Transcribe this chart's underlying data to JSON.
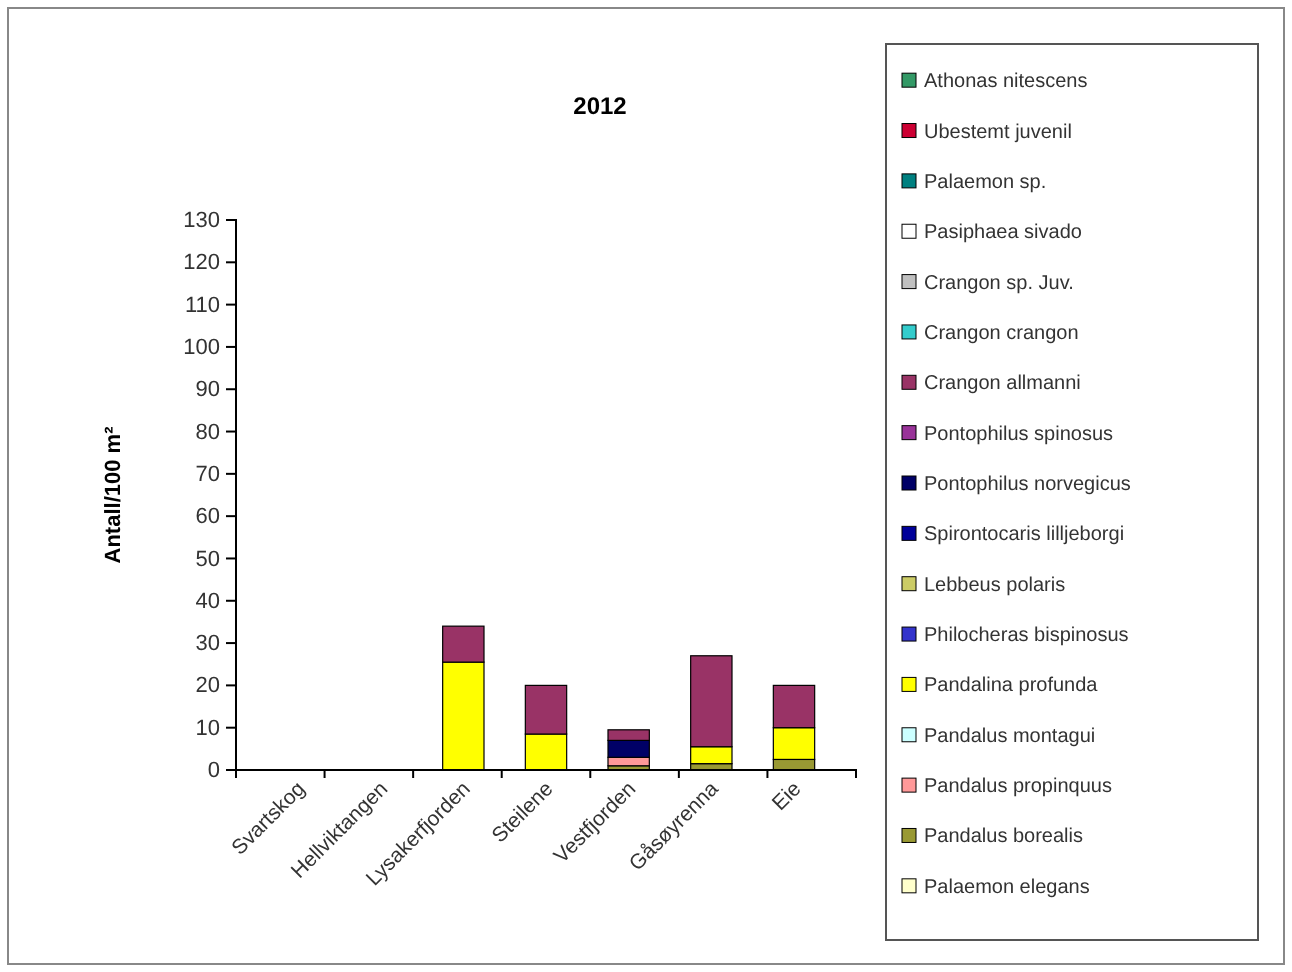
{
  "chart_data": {
    "type": "bar",
    "title": "2012",
    "ylabel": "Antall/100 m²",
    "stacked": true,
    "legend": "right",
    "grid": false,
    "categories": [
      "Svartskog",
      "Hellviktangen",
      "Lysakerfjorden",
      "Steilene",
      "Vestfjorden",
      "Gåsøyrenna",
      "Eie"
    ],
    "ylim": [
      0,
      130
    ],
    "yticks": [
      0,
      10,
      20,
      30,
      40,
      50,
      60,
      70,
      80,
      90,
      100,
      110,
      120,
      130
    ],
    "series": [
      {
        "name": "Palaemon elegans",
        "color": "#ffffcc",
        "values": [
          0,
          0,
          0,
          0,
          0,
          0,
          0
        ]
      },
      {
        "name": "Pandalus borealis",
        "color": "#999933",
        "values": [
          0,
          0,
          0,
          0,
          1,
          1.5,
          2.5
        ]
      },
      {
        "name": "Pandalus propinquus",
        "color": "#ff9999",
        "values": [
          0,
          0,
          0,
          0,
          2,
          0,
          0
        ]
      },
      {
        "name": "Pandalus montagui",
        "color": "#ccffff",
        "values": [
          0,
          0,
          0,
          0,
          0,
          0,
          0
        ]
      },
      {
        "name": "Pandalina profunda",
        "color": "#ffff00",
        "values": [
          0,
          0,
          25.5,
          8.5,
          0,
          4,
          7.5
        ]
      },
      {
        "name": "Philocheras bispinosus",
        "color": "#3333cc",
        "values": [
          0,
          0,
          0,
          0,
          0,
          0,
          0
        ]
      },
      {
        "name": "Lebbeus polaris",
        "color": "#cccc66",
        "values": [
          0,
          0,
          0,
          0,
          0,
          0,
          0
        ]
      },
      {
        "name": "Spirontocaris lilljeborgi",
        "color": "#000099",
        "values": [
          0,
          0,
          0,
          0,
          0,
          0,
          0
        ]
      },
      {
        "name": "Pontophilus norvegicus",
        "color": "#000066",
        "values": [
          0,
          0,
          0,
          0,
          4,
          0,
          0
        ]
      },
      {
        "name": "Pontophilus spinosus",
        "color": "#993399",
        "values": [
          0,
          0,
          0,
          0,
          0,
          0,
          0
        ]
      },
      {
        "name": "Crangon allmanni",
        "color": "#993366",
        "values": [
          0,
          0,
          8.5,
          11.5,
          2.5,
          21.5,
          10
        ]
      },
      {
        "name": "Crangon crangon",
        "color": "#33cccc",
        "values": [
          0,
          0,
          0,
          0,
          0,
          0,
          0
        ]
      },
      {
        "name": "Crangon sp. Juv.",
        "color": "#c0c0c0",
        "values": [
          0,
          0,
          0,
          0,
          0,
          0,
          0
        ]
      },
      {
        "name": "Pasiphaea sivado",
        "color": "#ffffff",
        "values": [
          0,
          0,
          0,
          0,
          0,
          0,
          0
        ]
      },
      {
        "name": "Palaemon sp.",
        "color": "#008080",
        "values": [
          0,
          0,
          0,
          0,
          0,
          0,
          0
        ]
      },
      {
        "name": "Ubestemt juvenil",
        "color": "#cc0033",
        "values": [
          0,
          0,
          0,
          0,
          0,
          0,
          0
        ]
      },
      {
        "name": "Athonas nitescens",
        "color": "#339966",
        "values": [
          0,
          0,
          0,
          0,
          0,
          0,
          0
        ]
      }
    ]
  }
}
